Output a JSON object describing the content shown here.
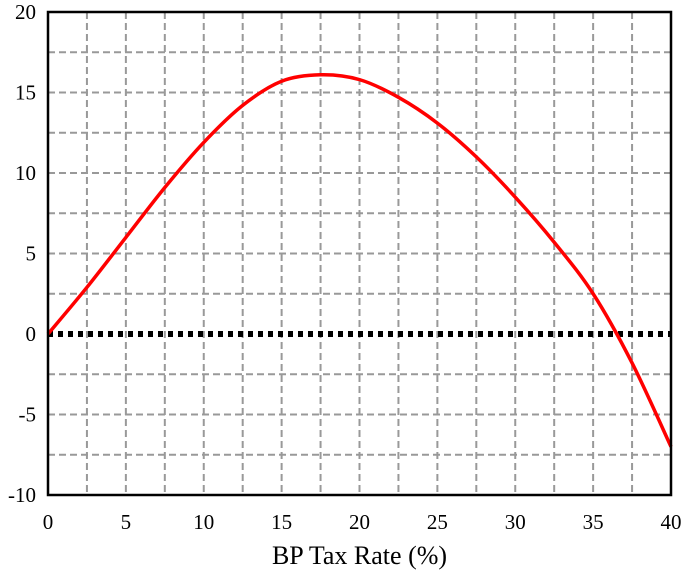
{
  "chart_data": {
    "type": "line",
    "title": "",
    "xlabel": "BP Tax Rate (%)",
    "ylabel": "",
    "xlim": [
      0,
      40
    ],
    "ylim": [
      -10,
      20
    ],
    "x_ticks": [
      "0",
      "5",
      "10",
      "15",
      "20",
      "25",
      "30",
      "35",
      "40"
    ],
    "y_ticks": [
      "-10",
      "-5",
      "0",
      "5",
      "10",
      "15",
      "20"
    ],
    "grid": true,
    "grid_style": "dashed",
    "legend": "none",
    "reference_line": {
      "y": 0,
      "style": "dotted",
      "color": "#000000"
    },
    "series": [
      {
        "color": "#ff0000",
        "x": [
          0,
          2.5,
          5,
          7.5,
          10,
          12.5,
          15,
          17.5,
          20,
          22.5,
          25,
          27.5,
          30,
          32.5,
          35,
          37.5,
          40
        ],
        "y": [
          0,
          2.9,
          6.0,
          9.1,
          11.9,
          14.2,
          15.7,
          16.1,
          15.8,
          14.7,
          13.1,
          11.0,
          8.5,
          5.7,
          2.5,
          -1.8,
          -7.0
        ]
      }
    ]
  }
}
